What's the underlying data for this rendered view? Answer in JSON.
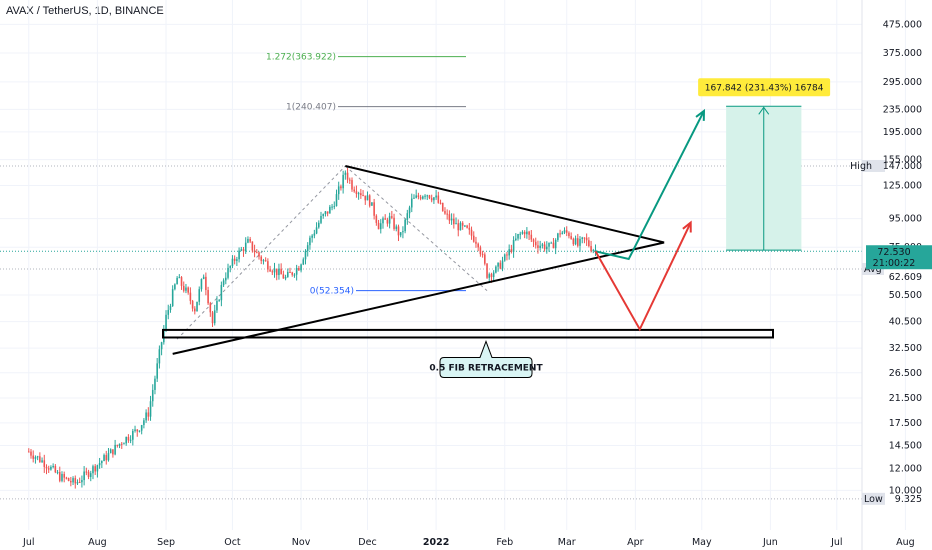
{
  "header": {
    "title": "AVAX / TetherUS, 1D, BINANCE"
  },
  "colors": {
    "up": "#26a69a",
    "down": "#ef5350",
    "fib_upper": "#4caf50",
    "fib_mid": "#787b86",
    "fib_zero": "#2962ff",
    "bull_arrow": "#089981",
    "bear_arrow": "#e53935",
    "target_fill": "#d6f2ea",
    "highlight": "#ffeb3b",
    "callout_fill": "#d9f5f4",
    "price_tag": "#26a69a",
    "axis_tag": "#e0e3eb"
  },
  "chart_data": {
    "type": "candlestick",
    "symbol": "AVAX / TetherUS",
    "interval": "1D",
    "exchange": "BINANCE",
    "scale": "log",
    "x_labels": [
      "Jul",
      "Aug",
      "Sep",
      "Oct",
      "Nov",
      "Dec",
      "2022",
      "Feb",
      "Mar",
      "Apr",
      "May",
      "Jun",
      "Jul",
      "Aug"
    ],
    "y_ticks": [
      "475.000",
      "375.000",
      "295.000",
      "235.000",
      "195.000",
      "155.000",
      "125.000",
      "95.000",
      "75.000",
      "62.609",
      "50.500",
      "40.500",
      "32.500",
      "26.500",
      "21.500",
      "17.500",
      "14.500",
      "12.000",
      "10.000",
      "9.325"
    ],
    "y_range": [
      9.0,
      480.0
    ],
    "closes": [
      [
        "2021-07-01",
        13.8
      ],
      [
        "2021-07-08",
        12.6
      ],
      [
        "2021-07-15",
        11.2
      ],
      [
        "2021-07-22",
        10.6
      ],
      [
        "2021-07-29",
        11.8
      ],
      [
        "2021-08-05",
        13.2
      ],
      [
        "2021-08-12",
        15.0
      ],
      [
        "2021-08-19",
        16.5
      ],
      [
        "2021-08-24",
        19.0
      ],
      [
        "2021-08-28",
        28.0
      ],
      [
        "2021-09-01",
        42.0
      ],
      [
        "2021-09-06",
        58.0
      ],
      [
        "2021-09-10",
        52.0
      ],
      [
        "2021-09-14",
        45.0
      ],
      [
        "2021-09-18",
        60.0
      ],
      [
        "2021-09-22",
        40.0
      ],
      [
        "2021-09-27",
        58.0
      ],
      [
        "2021-10-03",
        70.0
      ],
      [
        "2021-10-08",
        78.0
      ],
      [
        "2021-10-14",
        68.0
      ],
      [
        "2021-10-20",
        62.0
      ],
      [
        "2021-10-25",
        58.0
      ],
      [
        "2021-10-31",
        64.0
      ],
      [
        "2021-11-05",
        80.0
      ],
      [
        "2021-11-10",
        95.0
      ],
      [
        "2021-11-15",
        105.0
      ],
      [
        "2021-11-19",
        125.0
      ],
      [
        "2021-11-21",
        140.0
      ],
      [
        "2021-11-24",
        125.0
      ],
      [
        "2021-11-28",
        118.0
      ],
      [
        "2021-12-02",
        110.0
      ],
      [
        "2021-12-06",
        90.0
      ],
      [
        "2021-12-11",
        95.0
      ],
      [
        "2021-12-16",
        82.0
      ],
      [
        "2021-12-21",
        110.0
      ],
      [
        "2021-12-27",
        118.0
      ],
      [
        "2022-01-01",
        112.0
      ],
      [
        "2022-01-05",
        98.0
      ],
      [
        "2022-01-10",
        90.0
      ],
      [
        "2022-01-15",
        86.0
      ],
      [
        "2022-01-20",
        78.0
      ],
      [
        "2022-01-24",
        60.0
      ],
      [
        "2022-01-28",
        62.0
      ],
      [
        "2022-02-02",
        70.0
      ],
      [
        "2022-02-07",
        82.0
      ],
      [
        "2022-02-10",
        86.0
      ],
      [
        "2022-02-14",
        78.0
      ],
      [
        "2022-02-18",
        76.0
      ],
      [
        "2022-02-22",
        75.0
      ],
      [
        "2022-02-26",
        85.0
      ],
      [
        "2022-03-02",
        84.0
      ],
      [
        "2022-03-06",
        76.0
      ],
      [
        "2022-03-09",
        80.0
      ],
      [
        "2022-03-12",
        75.0
      ],
      [
        "2022-03-15",
        72.5
      ]
    ],
    "last_price": "72.530",
    "countdown": "21:00:22",
    "high": {
      "label": "High",
      "value": "147.000"
    },
    "low": {
      "label": "Low",
      "value": "9.325"
    },
    "avg": {
      "label": "Avg",
      "value": "62.609"
    },
    "fib_levels": [
      {
        "label": "1.272(363.922)",
        "value": 363.922
      },
      {
        "label": "1(240.407)",
        "value": 240.407
      },
      {
        "label": "0(52.354)",
        "value": 52.354
      }
    ],
    "support_zone": [
      35.5,
      37.8
    ],
    "triangle": {
      "upper": [
        [
          "2021-11-21",
          147.0
        ],
        [
          "2022-04-14",
          78.0
        ]
      ],
      "lower": [
        [
          "2021-09-04",
          31.0
        ],
        [
          "2022-04-14",
          78.0
        ]
      ]
    },
    "fib_swing_dashed": [
      [
        "2021-09-06",
        35.0
      ],
      [
        "2021-11-21",
        147.0
      ],
      [
        "2022-01-24",
        52.354
      ]
    ],
    "target_box": {
      "label": "167.842 (231.43%) 16784",
      "from_date": "2022-05-12",
      "to_date": "2022-06-15",
      "bottom": 73.2,
      "top": 241.0
    },
    "bull_path": [
      [
        "2022-03-14",
        72.5
      ],
      [
        "2022-03-29",
        68.0
      ],
      [
        "2022-05-02",
        232.0
      ]
    ],
    "bear_path": [
      [
        "2022-03-14",
        72.5
      ],
      [
        "2022-04-03",
        38.0
      ],
      [
        "2022-04-26",
        92.0
      ]
    ],
    "annotation": "0.5 FIB RETRACEMENT"
  }
}
